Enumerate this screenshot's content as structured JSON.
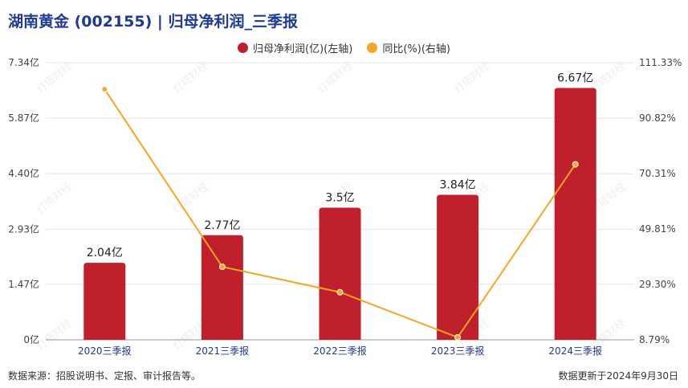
{
  "title": "湖南黄金 (002155) | 归母净利润_三季报",
  "legend": {
    "series1": "归母净利润(亿)(左轴)",
    "series2": "同比(%)(右轴)"
  },
  "footer": {
    "source": "数据来源：招股说明书、定报、审计报告等。",
    "updated": "数据更新于2024年9月30日"
  },
  "colors": {
    "title": "#1f3a93",
    "bar": "#c0202b",
    "line": "#f5a623",
    "category_label": "#1f3a93"
  },
  "chart_data": {
    "type": "bar",
    "categories": [
      "2020三季报",
      "2021三季报",
      "2022三季报",
      "2023三季报",
      "2024三季报"
    ],
    "series": [
      {
        "name": "归母净利润(亿)(左轴)",
        "type": "bar",
        "axis": "left",
        "values": [
          2.04,
          2.77,
          3.5,
          3.84,
          6.67
        ],
        "labels": [
          "2.04亿",
          "2.77亿",
          "3.5亿",
          "3.84亿",
          "6.67亿"
        ]
      },
      {
        "name": "同比(%)(右轴)",
        "type": "line",
        "axis": "right",
        "values": [
          101.5,
          35.8,
          26.4,
          9.7,
          73.7
        ]
      }
    ],
    "left_axis": {
      "ticks": [
        0,
        1.47,
        2.93,
        4.4,
        5.87,
        7.34
      ],
      "tick_labels": [
        "0亿",
        "1.47亿",
        "2.93亿",
        "4.40亿",
        "5.87亿",
        "7.34亿"
      ],
      "ylim": [
        0,
        7.34
      ]
    },
    "right_axis": {
      "ticks": [
        8.79,
        29.3,
        49.81,
        70.31,
        90.82,
        111.33
      ],
      "tick_labels": [
        "8.79%",
        "29.30%",
        "49.81%",
        "70.31%",
        "90.82%",
        "111.33%"
      ],
      "ylim": [
        8.79,
        111.33
      ]
    },
    "grid": true,
    "legend_position": "top-center",
    "watermark": "灯塔财经"
  }
}
